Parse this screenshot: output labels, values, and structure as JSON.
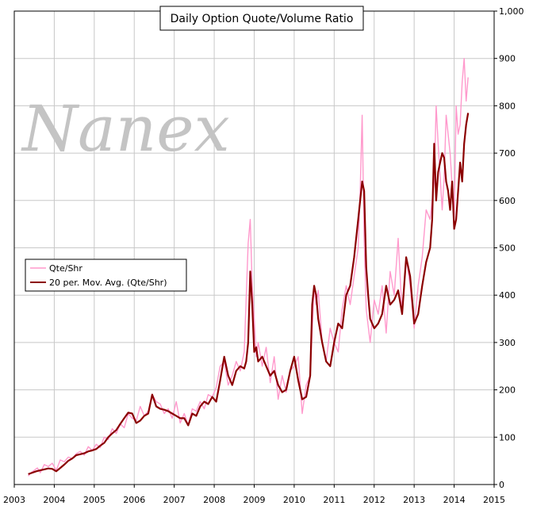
{
  "chart_data": {
    "type": "line",
    "title": "Daily Option Quote/Volume Ratio",
    "watermark": "Nanex",
    "xlabel": "",
    "ylabel": "",
    "xlim": [
      2003,
      2015
    ],
    "ylim": [
      0,
      1000
    ],
    "x_ticks": [
      "2003",
      "2004",
      "2005",
      "2006",
      "2007",
      "2008",
      "2009",
      "2010",
      "2011",
      "2012",
      "2013",
      "2014",
      "2015"
    ],
    "y_ticks": [
      "0",
      "100",
      "200",
      "300",
      "400",
      "500",
      "600",
      "700",
      "800",
      "900",
      "1,000"
    ],
    "grid": true,
    "legend_position": "left",
    "colors": {
      "daily": "#ff99cc",
      "average": "#8b0000",
      "grid": "#c8c8c8"
    },
    "series": [
      {
        "name": "Qte/Shr",
        "kind": "daily",
        "x": [
          2003.35,
          2003.42,
          2003.5,
          2003.58,
          2003.65,
          2003.75,
          2003.85,
          2003.95,
          2004.05,
          2004.15,
          2004.25,
          2004.35,
          2004.45,
          2004.55,
          2004.65,
          2004.75,
          2004.85,
          2004.95,
          2005.05,
          2005.15,
          2005.25,
          2005.35,
          2005.45,
          2005.55,
          2005.65,
          2005.75,
          2005.85,
          2005.95,
          2006.05,
          2006.15,
          2006.25,
          2006.35,
          2006.45,
          2006.55,
          2006.65,
          2006.75,
          2006.85,
          2006.95,
          2007.05,
          2007.15,
          2007.25,
          2007.35,
          2007.45,
          2007.55,
          2007.65,
          2007.75,
          2007.85,
          2007.95,
          2008.05,
          2008.15,
          2008.25,
          2008.35,
          2008.45,
          2008.55,
          2008.65,
          2008.75,
          2008.85,
          2008.9,
          2008.95,
          2009.0,
          2009.05,
          2009.1,
          2009.2,
          2009.3,
          2009.4,
          2009.5,
          2009.6,
          2009.7,
          2009.8,
          2009.9,
          2010.0,
          2010.1,
          2010.2,
          2010.3,
          2010.4,
          2010.5,
          2010.55,
          2010.6,
          2010.7,
          2010.8,
          2010.9,
          2011.0,
          2011.1,
          2011.2,
          2011.3,
          2011.4,
          2011.5,
          2011.6,
          2011.65,
          2011.7,
          2011.75,
          2011.8,
          2011.9,
          2012.0,
          2012.1,
          2012.2,
          2012.3,
          2012.4,
          2012.5,
          2012.6,
          2012.7,
          2012.8,
          2012.9,
          2013.0,
          2013.1,
          2013.2,
          2013.3,
          2013.4,
          2013.5,
          2013.55,
          2013.6,
          2013.7,
          2013.75,
          2013.8,
          2013.9,
          2014.0,
          2014.05,
          2014.1,
          2014.15,
          2014.2,
          2014.25,
          2014.3,
          2014.35
        ],
        "values": [
          18,
          25,
          30,
          35,
          25,
          42,
          38,
          45,
          30,
          52,
          48,
          58,
          55,
          65,
          70,
          62,
          80,
          72,
          85,
          78,
          100,
          95,
          118,
          108,
          128,
          120,
          150,
          140,
          135,
          165,
          145,
          155,
          190,
          175,
          170,
          150,
          160,
          140,
          175,
          130,
          150,
          125,
          160,
          155,
          175,
          160,
          190,
          185,
          205,
          250,
          260,
          210,
          230,
          260,
          240,
          280,
          510,
          560,
          420,
          350,
          270,
          300,
          250,
          290,
          215,
          270,
          180,
          230,
          195,
          240,
          250,
          270,
          150,
          210,
          230,
          420,
          380,
          410,
          300,
          260,
          330,
          300,
          280,
          370,
          420,
          380,
          440,
          500,
          620,
          780,
          520,
          370,
          300,
          390,
          360,
          420,
          320,
          450,
          400,
          520,
          360,
          480,
          420,
          330,
          420,
          480,
          580,
          560,
          640,
          800,
          720,
          580,
          650,
          780,
          700,
          560,
          800,
          740,
          760,
          850,
          900,
          810,
          860
        ]
      },
      {
        "name": "20 per. Mov. Avg. (Qte/Shr)",
        "kind": "average",
        "x": [
          2003.35,
          2003.45,
          2003.55,
          2003.65,
          2003.75,
          2003.85,
          2003.95,
          2004.05,
          2004.15,
          2004.25,
          2004.35,
          2004.45,
          2004.55,
          2004.65,
          2004.75,
          2004.85,
          2004.95,
          2005.05,
          2005.15,
          2005.25,
          2005.35,
          2005.45,
          2005.55,
          2005.65,
          2005.75,
          2005.85,
          2005.95,
          2006.05,
          2006.15,
          2006.25,
          2006.35,
          2006.45,
          2006.55,
          2006.65,
          2006.75,
          2006.85,
          2006.95,
          2007.05,
          2007.15,
          2007.25,
          2007.35,
          2007.45,
          2007.55,
          2007.65,
          2007.75,
          2007.85,
          2007.95,
          2008.05,
          2008.15,
          2008.25,
          2008.35,
          2008.45,
          2008.55,
          2008.65,
          2008.75,
          2008.8,
          2008.85,
          2008.9,
          2008.95,
          2009.0,
          2009.05,
          2009.1,
          2009.2,
          2009.3,
          2009.4,
          2009.5,
          2009.6,
          2009.7,
          2009.8,
          2009.9,
          2010.0,
          2010.1,
          2010.2,
          2010.3,
          2010.4,
          2010.45,
          2010.5,
          2010.55,
          2010.6,
          2010.7,
          2010.8,
          2010.9,
          2011.0,
          2011.1,
          2011.2,
          2011.3,
          2011.4,
          2011.5,
          2011.6,
          2011.65,
          2011.7,
          2011.75,
          2011.8,
          2011.85,
          2011.9,
          2012.0,
          2012.1,
          2012.2,
          2012.3,
          2012.4,
          2012.5,
          2012.6,
          2012.7,
          2012.8,
          2012.9,
          2013.0,
          2013.1,
          2013.2,
          2013.3,
          2013.4,
          2013.45,
          2013.5,
          2013.55,
          2013.6,
          2013.65,
          2013.7,
          2013.75,
          2013.8,
          2013.85,
          2013.9,
          2013.95,
          2014.0,
          2014.05,
          2014.1,
          2014.15,
          2014.2,
          2014.25,
          2014.3,
          2014.35
        ],
        "values": [
          22,
          25,
          28,
          30,
          32,
          34,
          33,
          28,
          35,
          42,
          50,
          55,
          62,
          64,
          66,
          70,
          72,
          75,
          82,
          88,
          100,
          108,
          115,
          128,
          140,
          152,
          150,
          130,
          135,
          145,
          150,
          190,
          165,
          160,
          158,
          155,
          150,
          145,
          140,
          140,
          125,
          150,
          145,
          165,
          175,
          170,
          185,
          175,
          220,
          270,
          230,
          210,
          240,
          250,
          245,
          260,
          300,
          450,
          380,
          280,
          290,
          260,
          270,
          250,
          230,
          240,
          210,
          195,
          200,
          240,
          270,
          220,
          180,
          185,
          230,
          380,
          420,
          400,
          350,
          300,
          260,
          250,
          300,
          340,
          330,
          400,
          420,
          480,
          560,
          600,
          640,
          620,
          460,
          400,
          350,
          330,
          340,
          360,
          420,
          380,
          390,
          410,
          360,
          480,
          440,
          340,
          360,
          420,
          470,
          500,
          560,
          720,
          600,
          660,
          680,
          700,
          690,
          640,
          620,
          580,
          640,
          540,
          560,
          620,
          680,
          640,
          720,
          760,
          785
        ]
      }
    ]
  }
}
